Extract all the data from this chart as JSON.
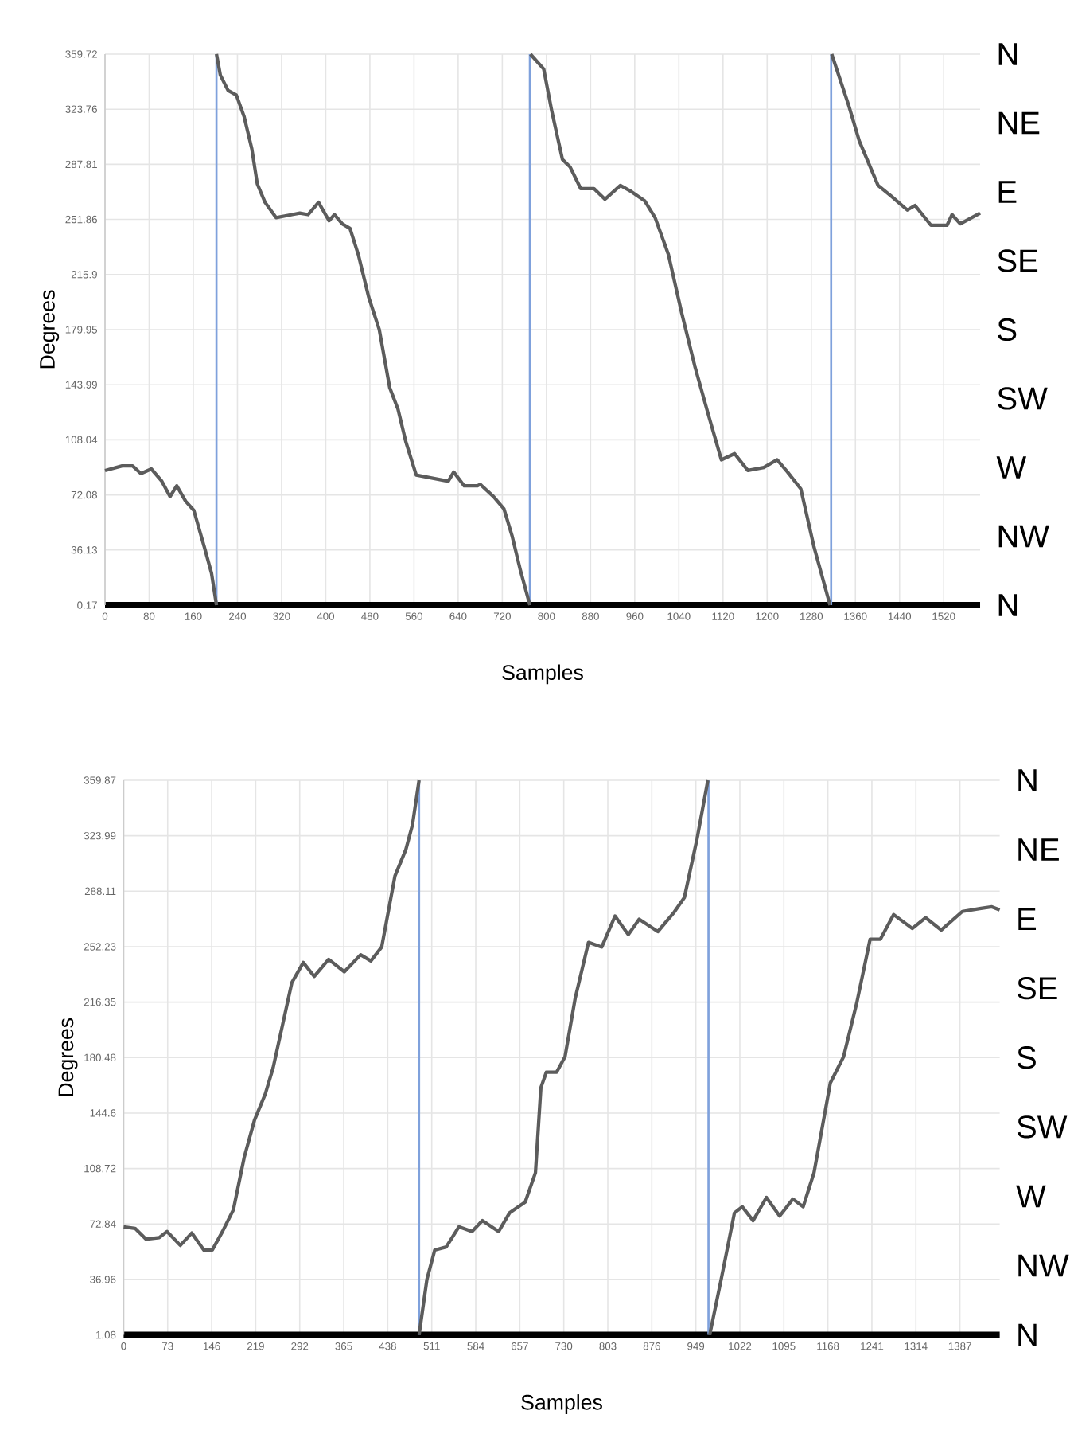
{
  "chart_data": [
    {
      "type": "line",
      "xlabel": "Samples",
      "ylabel": "Degrees",
      "xlim": [
        0,
        1586
      ],
      "ylim": [
        0.17,
        359.72
      ],
      "xticks": [
        0,
        80,
        160,
        240,
        320,
        400,
        480,
        560,
        640,
        720,
        800,
        880,
        960,
        1040,
        1120,
        1200,
        1280,
        1360,
        1440,
        1520
      ],
      "yticks": [
        0.17,
        36.13,
        72.08,
        108.04,
        143.99,
        179.95,
        215.9,
        251.86,
        287.81,
        323.76,
        359.72
      ],
      "annotations": [
        "N",
        "NE",
        "E",
        "SE",
        "S",
        "SW",
        "W",
        "NW",
        "N"
      ],
      "grid": true,
      "ref_lines": [
        {
          "axis": "x",
          "value": 202,
          "color": "#7fa1dc"
        },
        {
          "axis": "x",
          "value": 770,
          "color": "#7fa1dc"
        },
        {
          "axis": "x",
          "value": 1316,
          "color": "#7fa1dc"
        }
      ],
      "series": [
        {
          "color": "#5c5c5c",
          "x": [
            0,
            31,
            50,
            65,
            84,
            103,
            118,
            130,
            146,
            161,
            180,
            193,
            202
          ],
          "values": [
            88,
            91,
            91,
            86,
            89,
            81,
            71,
            78,
            68,
            62,
            38,
            21,
            0.17
          ]
        },
        {
          "color": "#5c5c5c",
          "x": [
            202,
            209,
            223,
            238,
            252,
            266,
            276,
            290,
            310,
            339,
            353,
            368,
            387,
            406,
            416,
            430,
            444,
            459,
            478,
            497,
            516,
            531,
            545,
            564,
            593,
            622,
            632,
            651,
            675,
            680,
            704,
            723,
            738,
            752,
            770
          ],
          "values": [
            359.72,
            346,
            336,
            333,
            319,
            298,
            275,
            263,
            253,
            255,
            256,
            255,
            263,
            251,
            255,
            249,
            246,
            229,
            201,
            180,
            142,
            128,
            107,
            85,
            83,
            81,
            87,
            78,
            78,
            79,
            71,
            63,
            45,
            24,
            0.17
          ]
        },
        {
          "color": "#5c5c5c",
          "x": [
            771,
            795,
            810,
            829,
            843,
            862,
            886,
            906,
            934,
            954,
            978,
            997,
            1021,
            1045,
            1069,
            1093,
            1117,
            1141,
            1165,
            1194,
            1218,
            1237,
            1261,
            1285,
            1314
          ],
          "values": [
            359.72,
            350,
            322,
            291,
            286,
            272,
            272,
            265,
            274,
            270,
            264,
            253,
            229,
            191,
            156,
            125,
            95,
            99,
            88,
            90,
            95,
            87,
            76,
            38,
            0.17
          ]
        },
        {
          "color": "#5c5c5c",
          "x": [
            1317,
            1348,
            1367,
            1401,
            1425,
            1454,
            1468,
            1497,
            1526,
            1535,
            1550,
            1586
          ],
          "values": [
            359.72,
            326,
            303,
            274,
            267,
            258,
            261,
            248,
            248,
            255,
            249,
            256
          ]
        }
      ]
    },
    {
      "type": "line",
      "xlabel": "Samples",
      "ylabel": "Degrees",
      "xlim": [
        0,
        1453
      ],
      "ylim": [
        1.08,
        359.87
      ],
      "xticks": [
        0,
        73,
        146,
        219,
        292,
        365,
        438,
        511,
        584,
        657,
        730,
        803,
        876,
        949,
        1022,
        1095,
        1168,
        1241,
        1314,
        1387
      ],
      "yticks": [
        1.08,
        36.96,
        72.84,
        108.72,
        144.6,
        180.48,
        216.35,
        252.23,
        288.11,
        323.99,
        359.87
      ],
      "annotations": [
        "N",
        "NE",
        "E",
        "SE",
        "S",
        "SW",
        "W",
        "NW",
        "N"
      ],
      "grid": true,
      "ref_lines": [
        {
          "axis": "x",
          "value": 490,
          "color": "#7fa1dc"
        },
        {
          "axis": "x",
          "value": 970,
          "color": "#7fa1dc"
        }
      ],
      "series": [
        {
          "color": "#5c5c5c",
          "x": [
            0,
            19,
            37,
            59,
            72,
            94,
            113,
            133,
            147,
            164,
            182,
            200,
            217,
            235,
            248,
            279,
            298,
            316,
            340,
            366,
            393,
            410,
            428,
            450,
            468,
            479,
            490
          ],
          "values": [
            71,
            70,
            63,
            64,
            68,
            59,
            67,
            56,
            56,
            68,
            82,
            116,
            140,
            157,
            174,
            229,
            242,
            233,
            244,
            236,
            247,
            243,
            252,
            298,
            315,
            331,
            359.87
          ]
        },
        {
          "color": "#5c5c5c",
          "x": [
            490,
            503,
            516,
            535,
            556,
            578,
            595,
            622,
            640,
            666,
            683,
            692,
            701,
            718,
            732,
            749,
            771,
            793,
            815,
            837,
            855,
            886,
            912,
            930,
            951,
            969
          ],
          "values": [
            1.08,
            37,
            56,
            58,
            71,
            68,
            75,
            68,
            80,
            87,
            106,
            161,
            171,
            171,
            181,
            219,
            255,
            252,
            272,
            260,
            270,
            262,
            274,
            284,
            322,
            359.87
          ]
        },
        {
          "color": "#5c5c5c",
          "x": [
            972,
            991,
            1013,
            1026,
            1044,
            1066,
            1088,
            1110,
            1127,
            1145,
            1172,
            1194,
            1216,
            1238,
            1255,
            1277,
            1308,
            1330,
            1356,
            1391,
            1422,
            1440,
            1453
          ],
          "values": [
            1.08,
            37,
            80,
            84,
            75,
            90,
            78,
            89,
            84,
            106,
            164,
            181,
            216,
            257,
            257,
            273,
            264,
            271,
            263,
            275,
            277,
            278,
            276
          ]
        }
      ]
    }
  ]
}
